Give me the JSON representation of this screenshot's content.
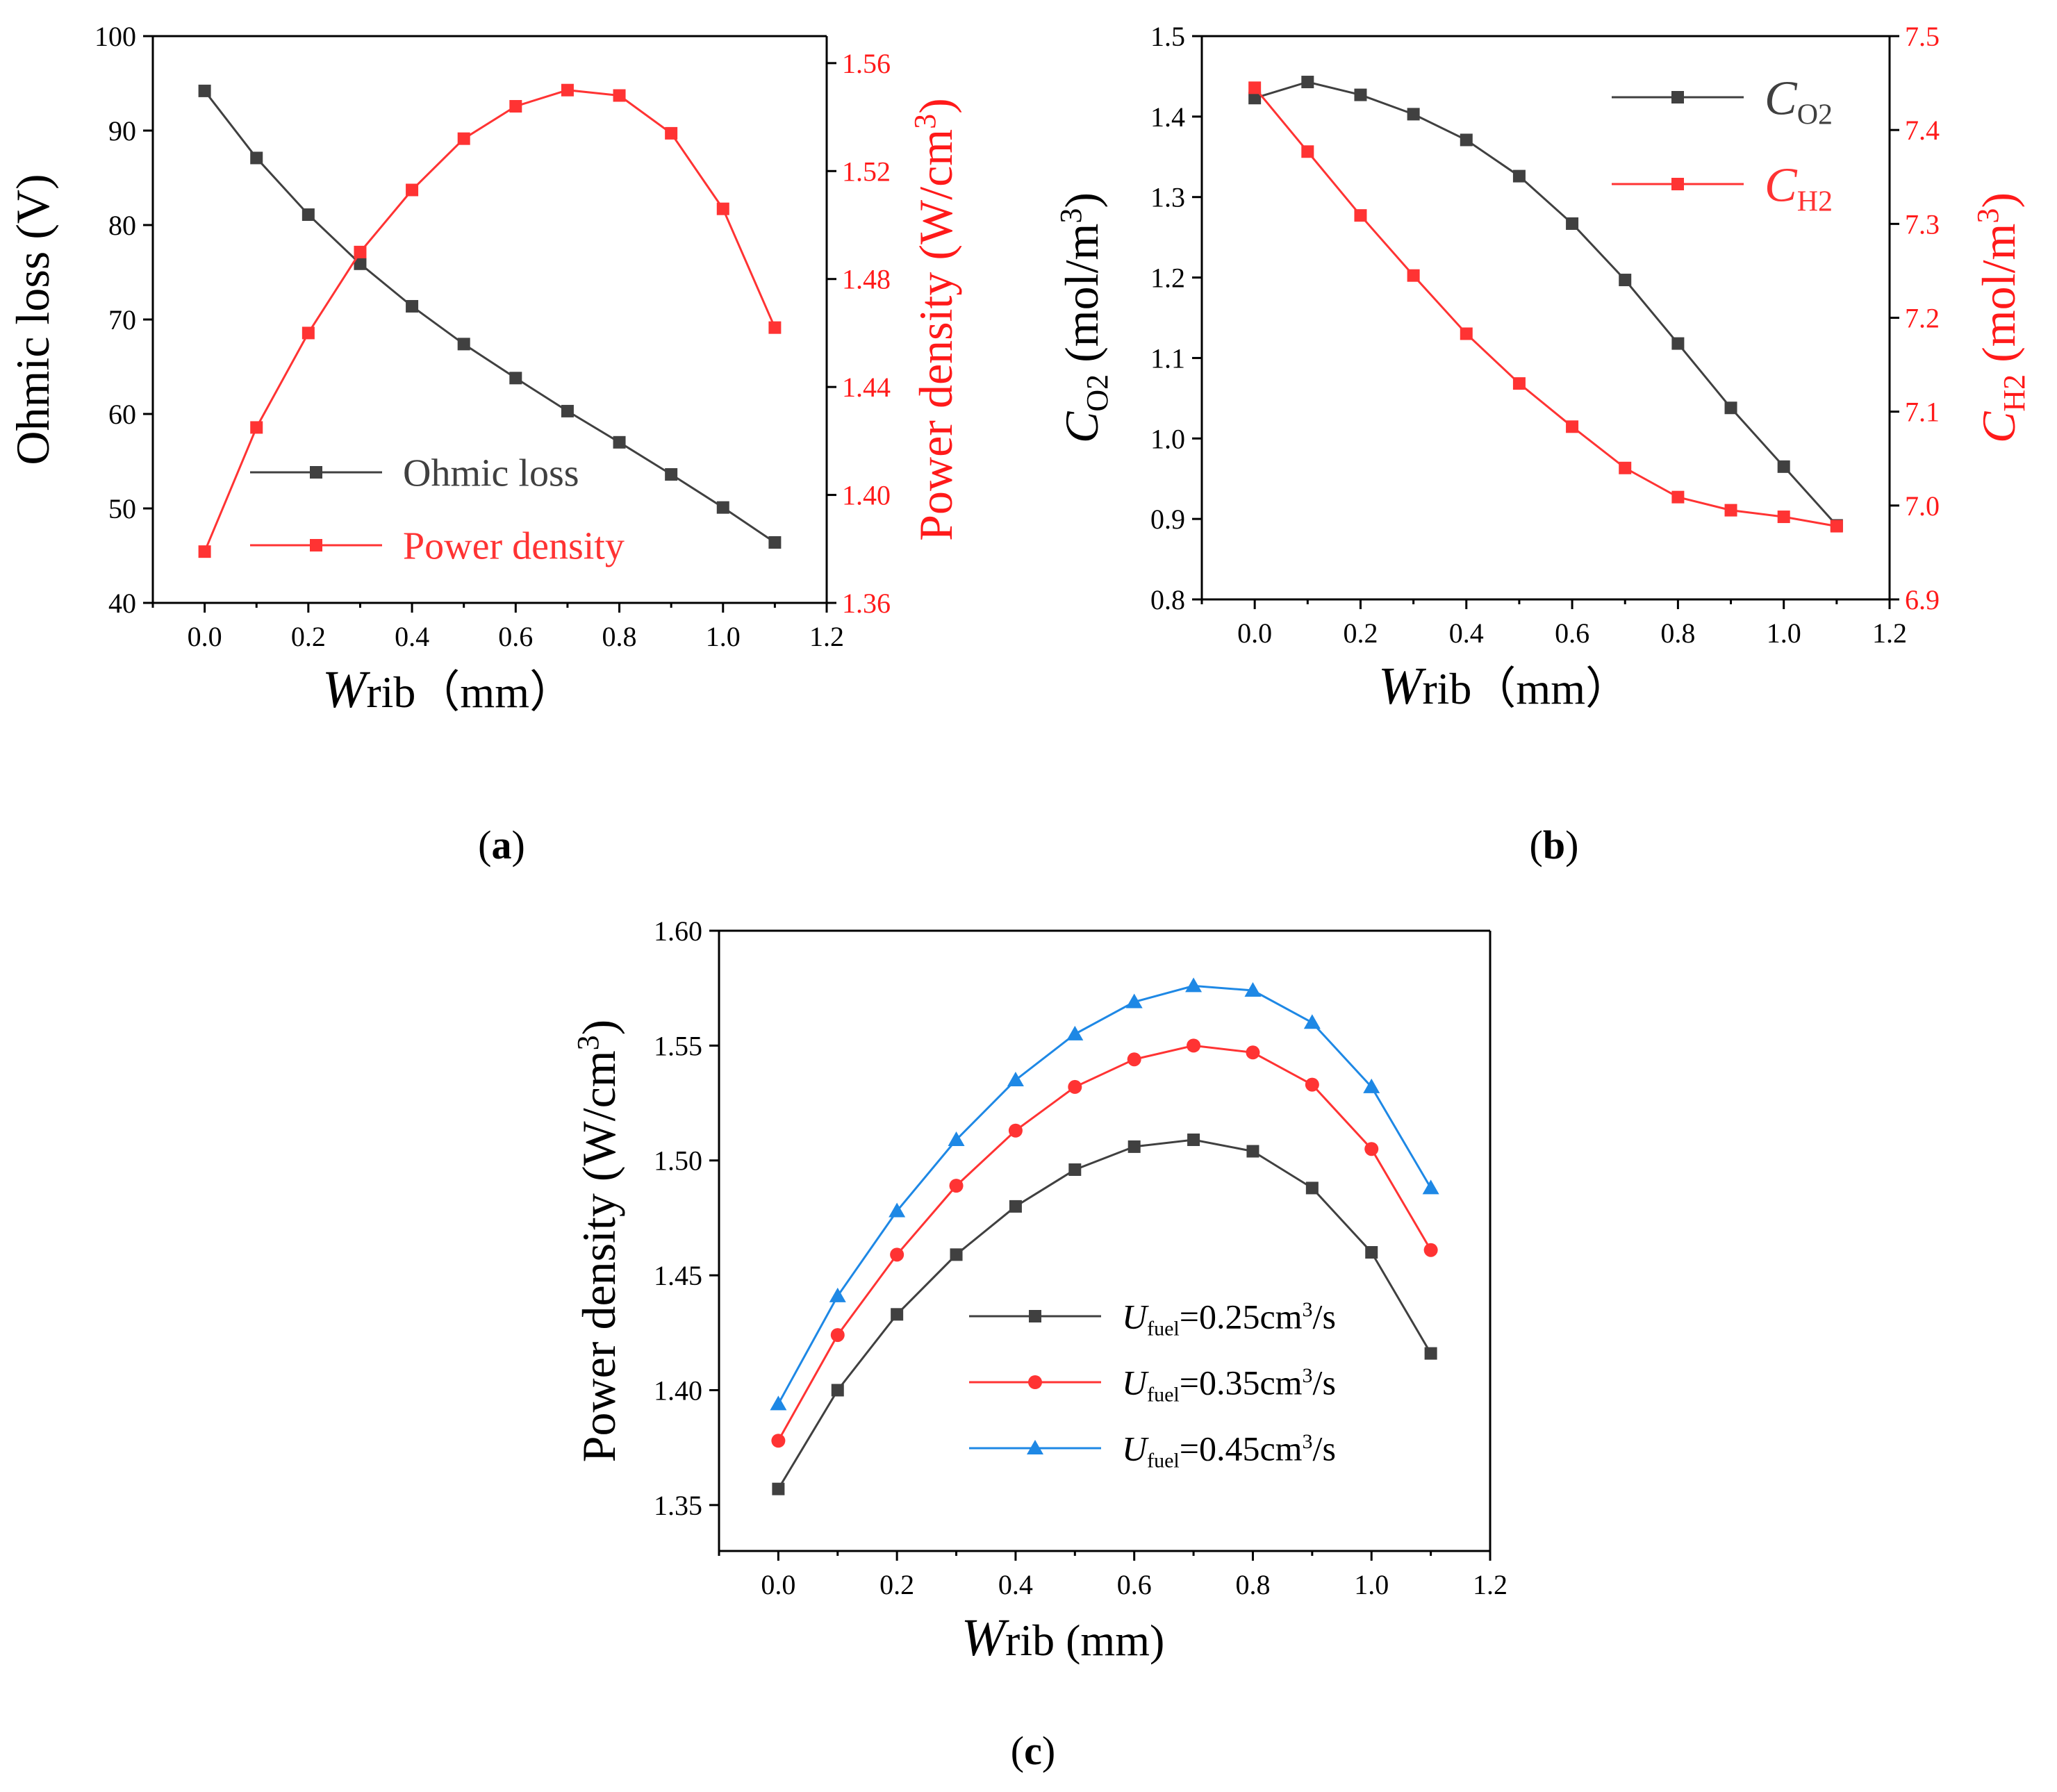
{
  "figure": {
    "panel_a_label": "a",
    "panel_b_label": "b",
    "panel_c_label": "c"
  },
  "colors": {
    "black_series": "#404040",
    "red_series": "#ff3333",
    "blue_series": "#1e88e5",
    "red_axis": "#ff1a1a"
  },
  "chart_data": [
    {
      "id": "a",
      "type": "line",
      "dual_axis": true,
      "xlabel": "W",
      "xlabel_sub": "rib",
      "xlabel_unit": "（mm）",
      "x_ticks": [
        "0.0",
        "0.2",
        "0.4",
        "0.6",
        "0.8",
        "1.0",
        "1.2"
      ],
      "xlim": [
        -0.1,
        1.2
      ],
      "ylabel_left": "Ohmic loss (V)",
      "ylim_left": [
        40,
        100
      ],
      "yticks_left": [
        "40",
        "50",
        "60",
        "70",
        "80",
        "90",
        "100"
      ],
      "ylabel_right": "Power density (W/cm",
      "ylabel_right_sup": "3",
      "ylabel_right_end": ")",
      "ylim_right": [
        1.36,
        1.57
      ],
      "yticks_right": [
        "1.36",
        "1.40",
        "1.44",
        "1.48",
        "1.52",
        "1.56"
      ],
      "legend_position": "bottom-left",
      "series": [
        {
          "name": "Ohmic loss",
          "axis": "left",
          "marker": "square",
          "x": [
            0.0,
            0.1,
            0.2,
            0.3,
            0.4,
            0.5,
            0.6,
            0.7,
            0.8,
            0.9,
            1.0,
            1.1
          ],
          "values": [
            94.2,
            87.1,
            81.1,
            75.9,
            71.4,
            67.4,
            63.8,
            60.3,
            57.0,
            53.6,
            50.1,
            46.4
          ]
        },
        {
          "name": "Power density",
          "axis": "right",
          "marker": "square",
          "x": [
            0.0,
            0.1,
            0.2,
            0.3,
            0.4,
            0.5,
            0.6,
            0.7,
            0.8,
            0.9,
            1.0,
            1.1
          ],
          "values": [
            1.379,
            1.425,
            1.46,
            1.49,
            1.513,
            1.532,
            1.544,
            1.55,
            1.548,
            1.534,
            1.506,
            1.462
          ]
        }
      ]
    },
    {
      "id": "b",
      "type": "line",
      "dual_axis": true,
      "xlabel": "W",
      "xlabel_sub": "rib",
      "xlabel_unit": "（mm）",
      "x_ticks": [
        "0.0",
        "0.2",
        "0.4",
        "0.6",
        "0.8",
        "1.0",
        "1.2"
      ],
      "xlim": [
        -0.1,
        1.2
      ],
      "ylabel_left": "C",
      "ylabel_left_sub": "O2",
      "ylabel_left_unit": " (mol/m",
      "ylabel_left_sup": "3",
      "ylabel_left_end": ")",
      "ylim_left": [
        0.8,
        1.5
      ],
      "yticks_left": [
        "0.8",
        "0.9",
        "1.0",
        "1.1",
        "1.2",
        "1.3",
        "1.4",
        "1.5"
      ],
      "ylabel_right": "C",
      "ylabel_right_sub": "H2",
      "ylabel_right_unit": " (mol/m",
      "ylabel_right_sup": "3",
      "ylabel_right_end": ")",
      "ylim_right": [
        6.9,
        7.5
      ],
      "yticks_right": [
        "6.9",
        "7.0",
        "7.1",
        "7.2",
        "7.3",
        "7.4",
        "7.5"
      ],
      "legend_position": "top-right",
      "series": [
        {
          "name": "C",
          "name_sub": "O2",
          "axis": "left",
          "marker": "square",
          "x": [
            0.0,
            0.1,
            0.2,
            0.3,
            0.4,
            0.5,
            0.6,
            0.7,
            0.8,
            0.9,
            1.0,
            1.1
          ],
          "values": [
            1.423,
            1.443,
            1.427,
            1.403,
            1.371,
            1.326,
            1.267,
            1.197,
            1.118,
            1.038,
            0.965,
            0.892
          ]
        },
        {
          "name": "C",
          "name_sub": "H2",
          "axis": "right",
          "marker": "square",
          "x": [
            0.0,
            0.1,
            0.2,
            0.3,
            0.4,
            0.5,
            0.6,
            0.7,
            0.8,
            0.9,
            1.0,
            1.1
          ],
          "values": [
            7.445,
            7.377,
            7.309,
            7.245,
            7.183,
            7.13,
            7.084,
            7.04,
            7.009,
            6.995,
            6.988,
            6.978
          ]
        }
      ]
    },
    {
      "id": "c",
      "type": "line",
      "dual_axis": false,
      "xlabel": "W",
      "xlabel_sub": "rib",
      "xlabel_unit": " (mm)",
      "x_ticks": [
        "0.0",
        "0.2",
        "0.4",
        "0.6",
        "0.8",
        "1.0",
        "1.2"
      ],
      "xlim": [
        -0.1,
        1.2
      ],
      "ylabel_left": "Power density (W/cm",
      "ylabel_left_sup": "3",
      "ylabel_left_end": ")",
      "ylim_left": [
        1.33,
        1.6
      ],
      "yticks_left": [
        "1.35",
        "1.40",
        "1.45",
        "1.50",
        "1.55",
        "1.60"
      ],
      "legend_position": "bottom-center",
      "series": [
        {
          "name": "U",
          "name_sub": "fuel",
          "name_value": "=0.25cm",
          "name_sup": "3",
          "name_end": "/s",
          "marker": "square",
          "x": [
            0.0,
            0.1,
            0.2,
            0.3,
            0.4,
            0.5,
            0.6,
            0.7,
            0.8,
            0.9,
            1.0,
            1.1
          ],
          "values": [
            1.357,
            1.4,
            1.433,
            1.459,
            1.48,
            1.496,
            1.506,
            1.509,
            1.504,
            1.488,
            1.46,
            1.416
          ]
        },
        {
          "name": "U",
          "name_sub": "fuel",
          "name_value": "=0.35cm",
          "name_sup": "3",
          "name_end": "/s",
          "marker": "circle",
          "x": [
            0.0,
            0.1,
            0.2,
            0.3,
            0.4,
            0.5,
            0.6,
            0.7,
            0.8,
            0.9,
            1.0,
            1.1
          ],
          "values": [
            1.378,
            1.424,
            1.459,
            1.489,
            1.513,
            1.532,
            1.544,
            1.55,
            1.547,
            1.533,
            1.505,
            1.461
          ]
        },
        {
          "name": "U",
          "name_sub": "fuel",
          "name_value": "=0.45cm",
          "name_sup": "3",
          "name_end": "/s",
          "marker": "triangle",
          "x": [
            0.0,
            0.1,
            0.2,
            0.3,
            0.4,
            0.5,
            0.6,
            0.7,
            0.8,
            0.9,
            1.0,
            1.1
          ],
          "values": [
            1.394,
            1.441,
            1.478,
            1.509,
            1.535,
            1.555,
            1.569,
            1.576,
            1.574,
            1.56,
            1.532,
            1.488
          ]
        }
      ]
    }
  ]
}
